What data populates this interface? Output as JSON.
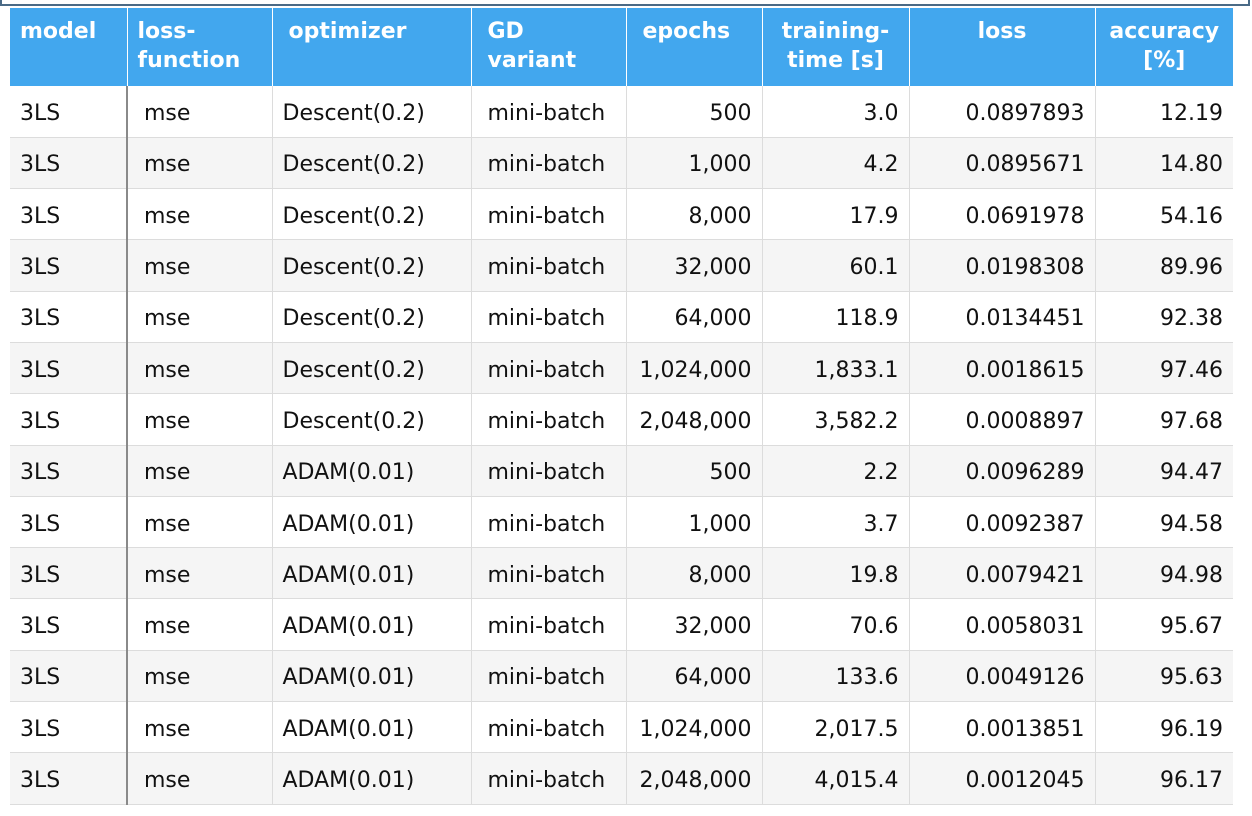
{
  "table": {
    "headers": [
      "model",
      "loss-\nfunction",
      "optimizer",
      "GD variant",
      "epochs",
      "training-\ntime [s]",
      "loss",
      "accuracy\n[%]"
    ],
    "header_lines": [
      [
        "model"
      ],
      [
        "loss-",
        "function"
      ],
      [
        "optimizer"
      ],
      [
        "GD variant"
      ],
      [
        "epochs"
      ],
      [
        "training-",
        "time [s]"
      ],
      [
        "loss"
      ],
      [
        "accuracy",
        "[%]"
      ]
    ],
    "rows": [
      [
        "3LS",
        "mse",
        "Descent(0.2)",
        "mini-batch",
        "500",
        "3.0",
        "0.0897893",
        "12.19"
      ],
      [
        "3LS",
        "mse",
        "Descent(0.2)",
        "mini-batch",
        "1,000",
        "4.2",
        "0.0895671",
        "14.80"
      ],
      [
        "3LS",
        "mse",
        "Descent(0.2)",
        "mini-batch",
        "8,000",
        "17.9",
        "0.0691978",
        "54.16"
      ],
      [
        "3LS",
        "mse",
        "Descent(0.2)",
        "mini-batch",
        "32,000",
        "60.1",
        "0.0198308",
        "89.96"
      ],
      [
        "3LS",
        "mse",
        "Descent(0.2)",
        "mini-batch",
        "64,000",
        "118.9",
        "0.0134451",
        "92.38"
      ],
      [
        "3LS",
        "mse",
        "Descent(0.2)",
        "mini-batch",
        "1,024,000",
        "1,833.1",
        "0.0018615",
        "97.46"
      ],
      [
        "3LS",
        "mse",
        "Descent(0.2)",
        "mini-batch",
        "2,048,000",
        "3,582.2",
        "0.0008897",
        "97.68"
      ],
      [
        "3LS",
        "mse",
        "ADAM(0.01)",
        "mini-batch",
        "500",
        "2.2",
        "0.0096289",
        "94.47"
      ],
      [
        "3LS",
        "mse",
        "ADAM(0.01)",
        "mini-batch",
        "1,000",
        "3.7",
        "0.0092387",
        "94.58"
      ],
      [
        "3LS",
        "mse",
        "ADAM(0.01)",
        "mini-batch",
        "8,000",
        "19.8",
        "0.0079421",
        "94.98"
      ],
      [
        "3LS",
        "mse",
        "ADAM(0.01)",
        "mini-batch",
        "32,000",
        "70.6",
        "0.0058031",
        "95.67"
      ],
      [
        "3LS",
        "mse",
        "ADAM(0.01)",
        "mini-batch",
        "64,000",
        "133.6",
        "0.0049126",
        "95.63"
      ],
      [
        "3LS",
        "mse",
        "ADAM(0.01)",
        "mini-batch",
        "1,024,000",
        "2,017.5",
        "0.0013851",
        "96.19"
      ],
      [
        "3LS",
        "mse",
        "ADAM(0.01)",
        "mini-batch",
        "2,048,000",
        "4,015.4",
        "0.0012045",
        "96.17"
      ]
    ],
    "colors": {
      "header_bg": "#42a7ee",
      "header_text": "#ffffff",
      "row_alt_bg": "#f5f5f5"
    }
  }
}
